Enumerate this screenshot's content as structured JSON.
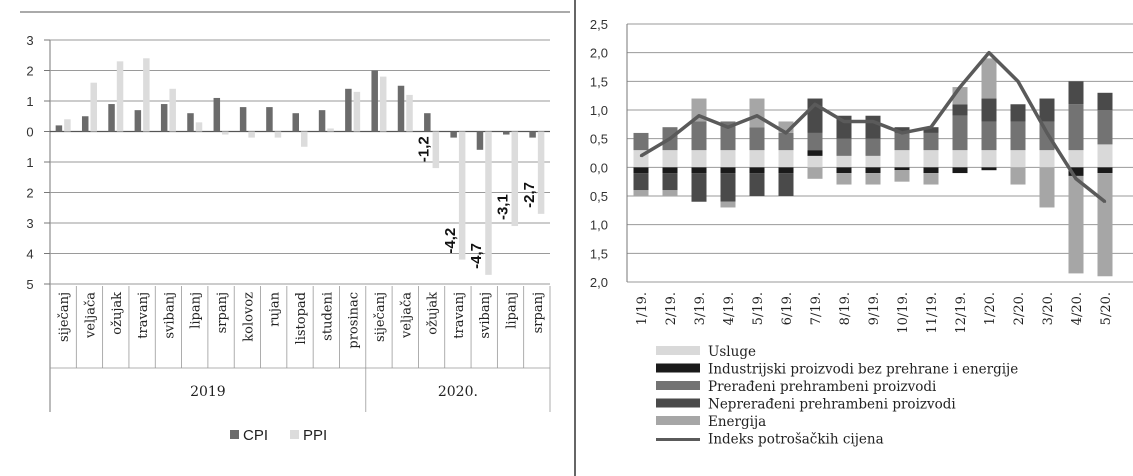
{
  "colors": {
    "cpi": "#6b6b6b",
    "ppi": "#dcdcdc",
    "usluge": "#d9d9d9",
    "industrijski": "#1a1a1a",
    "preradeni": "#737373",
    "nepreradeni": "#4a4a4a",
    "energija": "#a6a6a6",
    "indeks": "#5a5a5a",
    "grid": "#9a9a9a",
    "divider": "#333333"
  },
  "chart_data": [
    {
      "type": "bar",
      "title": "",
      "xlabel": "",
      "ylabel": "",
      "ylim": [
        -5,
        3
      ],
      "y_ticks": [
        3,
        2,
        1,
        0,
        -1,
        -2,
        -3,
        -4,
        -5
      ],
      "y_tick_labels": [
        "3",
        "2",
        "1",
        "0",
        "1",
        "2",
        "3",
        "4",
        "5"
      ],
      "categories": [
        "siječanj",
        "veljača",
        "ožujak",
        "travanj",
        "svibanj",
        "lipanj",
        "srpanj",
        "kolovoz",
        "rujan",
        "listopad",
        "studeni",
        "prosinac",
        "siječanj",
        "veljača",
        "ožujak",
        "travanj",
        "svibanj",
        "lipanj",
        "srpanj"
      ],
      "groups": [
        {
          "label": "2019",
          "count": 12
        },
        {
          "label": "2020.",
          "count": 7
        }
      ],
      "series": [
        {
          "name": "CPI",
          "values": [
            0.2,
            0.5,
            0.9,
            0.7,
            0.9,
            0.6,
            1.1,
            0.8,
            0.8,
            0.6,
            0.7,
            1.4,
            2.0,
            1.5,
            0.6,
            -0.2,
            -0.6,
            -0.1,
            -0.2
          ]
        },
        {
          "name": "PPI",
          "values": [
            0.4,
            1.6,
            2.3,
            2.4,
            1.4,
            0.3,
            -0.1,
            -0.2,
            -0.2,
            -0.5,
            0.1,
            1.3,
            1.8,
            1.2,
            -1.2,
            -4.2,
            -4.7,
            -3.1,
            -2.7
          ]
        }
      ],
      "data_labels": [
        {
          "category_index": 14,
          "series": "PPI",
          "text": "-1,2"
        },
        {
          "category_index": 15,
          "series": "PPI",
          "text": "-4,2"
        },
        {
          "category_index": 16,
          "series": "PPI",
          "text": "-4,7"
        },
        {
          "category_index": 17,
          "series": "PPI",
          "text": "-3,1"
        },
        {
          "category_index": 18,
          "series": "PPI",
          "text": "-2,7"
        }
      ],
      "grid": true,
      "legend_placement": "bottom"
    },
    {
      "type": "bar",
      "stacked": true,
      "title": "",
      "xlabel": "",
      "ylabel": "",
      "ylim": [
        -2.0,
        2.5
      ],
      "y_ticks": [
        2.5,
        2.0,
        1.5,
        1.0,
        0.5,
        0.0,
        -0.5,
        -1.0,
        -1.5,
        -2.0
      ],
      "y_tick_labels": [
        "2,5",
        "2,0",
        "1,5",
        "1,0",
        "0,5",
        "0,0",
        "0,5",
        "1,0",
        "1,5",
        "2,0"
      ],
      "categories": [
        "1/19.",
        "2/19.",
        "3/19.",
        "4/19.",
        "5/19.",
        "6/19.",
        "7/19.",
        "8/19.",
        "9/19.",
        "10/19.",
        "11/19.",
        "12/19.",
        "1/20.",
        "2/20.",
        "3/20.",
        "4/20.",
        "5/20."
      ],
      "series": [
        {
          "name": "Usluge",
          "values": [
            0.3,
            0.3,
            0.3,
            0.3,
            0.3,
            0.3,
            0.2,
            0.2,
            0.2,
            0.3,
            0.3,
            0.3,
            0.3,
            0.3,
            0.3,
            0.3,
            0.4
          ]
        },
        {
          "name": "Industrijski proizvodi bez prehrane i energije",
          "values": [
            -0.1,
            -0.1,
            -0.1,
            -0.1,
            -0.1,
            -0.1,
            0.1,
            -0.1,
            -0.1,
            -0.05,
            -0.1,
            -0.1,
            -0.05,
            0.0,
            0.0,
            -0.15,
            -0.1
          ]
        },
        {
          "name": "Prerađeni prehrambeni proizvodi",
          "values": [
            0.3,
            0.4,
            0.5,
            0.5,
            0.4,
            0.3,
            0.3,
            0.3,
            0.3,
            0.3,
            0.3,
            0.6,
            0.5,
            0.5,
            0.5,
            0.8,
            0.6
          ]
        },
        {
          "name": "Neprerađeni prehrambeni proizvodi",
          "values": [
            -0.3,
            -0.3,
            -0.5,
            -0.5,
            -0.4,
            -0.4,
            0.6,
            0.4,
            0.4,
            0.1,
            0.1,
            0.2,
            0.4,
            0.3,
            0.4,
            0.4,
            0.3
          ]
        },
        {
          "name": "Energija",
          "values": [
            -0.1,
            -0.1,
            0.4,
            -0.1,
            0.5,
            0.2,
            -0.2,
            -0.2,
            -0.2,
            -0.2,
            -0.2,
            0.3,
            0.7,
            -0.3,
            -0.7,
            -1.7,
            -1.8
          ]
        },
        {
          "name": "Indeks potrošačkih cijena",
          "type": "line",
          "values": [
            0.2,
            0.5,
            0.9,
            0.7,
            0.9,
            0.6,
            1.1,
            0.8,
            0.8,
            0.6,
            0.7,
            1.4,
            2.0,
            1.5,
            0.6,
            -0.2,
            -0.6
          ]
        }
      ],
      "grid": true,
      "legend_placement": "bottom"
    }
  ]
}
